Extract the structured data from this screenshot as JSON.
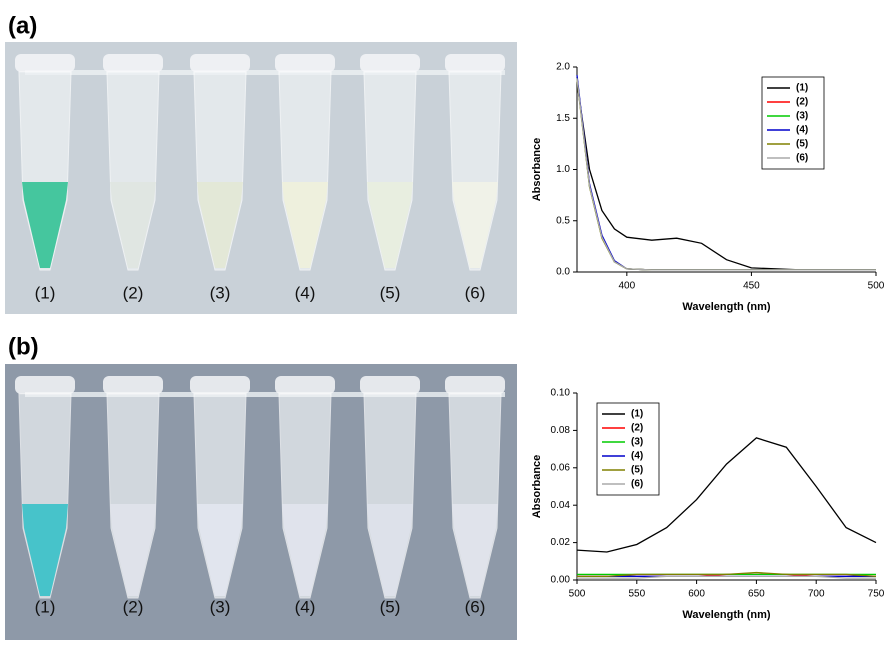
{
  "panels": [
    {
      "label": "(a)",
      "tubes": [
        "(1)",
        "(2)",
        "(3)",
        "(4)",
        "(5)",
        "(6)"
      ]
    },
    {
      "label": "(b)",
      "tubes": [
        "(1)",
        "(2)",
        "(3)",
        "(4)",
        "(5)",
        "(6)"
      ]
    }
  ],
  "chart_data": [
    {
      "type": "line",
      "x_label": "Wavelength (nm)",
      "y_label": "Absorbance",
      "x": [
        380,
        385,
        390,
        395,
        400,
        410,
        420,
        430,
        440,
        450,
        470,
        500
      ],
      "xlim": [
        380,
        500
      ],
      "xticks": [
        400,
        450,
        500
      ],
      "ylim": [
        0,
        2
      ],
      "yticks": [
        {
          "value": 0,
          "label": "0.0"
        },
        0.5,
        {
          "value": 1,
          "label": "1.0"
        },
        1.5,
        {
          "value": 2,
          "label": "2.0"
        }
      ],
      "legend": "upper right",
      "series": [
        {
          "name": "(1)",
          "color": "#000000",
          "values": [
            1.85,
            1.0,
            0.6,
            0.42,
            0.34,
            0.31,
            0.33,
            0.28,
            0.12,
            0.04,
            0.02,
            0.02
          ]
        },
        {
          "name": "(2)",
          "color": "#ff0000",
          "values": [
            1.9,
            0.85,
            0.35,
            0.1,
            0.03,
            0.02,
            0.02,
            0.02,
            0.02,
            0.02,
            0.02,
            0.02
          ]
        },
        {
          "name": "(3)",
          "color": "#00cc00",
          "values": [
            1.9,
            0.84,
            0.34,
            0.1,
            0.03,
            0.02,
            0.02,
            0.02,
            0.02,
            0.02,
            0.02,
            0.02
          ]
        },
        {
          "name": "(4)",
          "color": "#0000cc",
          "values": [
            1.92,
            0.86,
            0.36,
            0.11,
            0.03,
            0.02,
            0.02,
            0.02,
            0.02,
            0.02,
            0.02,
            0.02
          ]
        },
        {
          "name": "(5)",
          "color": "#808000",
          "values": [
            1.88,
            0.83,
            0.33,
            0.1,
            0.03,
            0.02,
            0.02,
            0.02,
            0.02,
            0.02,
            0.02,
            0.02
          ]
        },
        {
          "name": "(6)",
          "color": "#aaaaaa",
          "values": [
            1.89,
            0.84,
            0.34,
            0.1,
            0.03,
            0.02,
            0.02,
            0.02,
            0.02,
            0.02,
            0.02,
            0.02
          ]
        }
      ]
    },
    {
      "type": "line",
      "x_label": "Wavelength (nm)",
      "y_label": "Absorbance",
      "x": [
        500,
        525,
        550,
        575,
        600,
        625,
        650,
        675,
        700,
        725,
        750
      ],
      "xlim": [
        500,
        750
      ],
      "xticks": [
        500,
        550,
        600,
        650,
        700,
        750
      ],
      "ylim": [
        0,
        0.1
      ],
      "yticks": [
        {
          "value": 0,
          "label": "0.00"
        },
        {
          "value": 0.02,
          "label": "0.02"
        },
        {
          "value": 0.04,
          "label": "0.04"
        },
        {
          "value": 0.06,
          "label": "0.06"
        },
        {
          "value": 0.08,
          "label": "0.08"
        },
        {
          "value": 0.1,
          "label": "0.10"
        }
      ],
      "legend": "upper left",
      "series": [
        {
          "name": "(1)",
          "color": "#000000",
          "values": [
            0.016,
            0.015,
            0.019,
            0.028,
            0.043,
            0.062,
            0.076,
            0.071,
            0.05,
            0.028,
            0.02
          ]
        },
        {
          "name": "(2)",
          "color": "#ff0000",
          "values": [
            0.002,
            0.002,
            0.002,
            0.002,
            0.002,
            0.003,
            0.003,
            0.003,
            0.002,
            0.002,
            0.002
          ]
        },
        {
          "name": "(3)",
          "color": "#00cc00",
          "values": [
            0.003,
            0.003,
            0.003,
            0.003,
            0.003,
            0.003,
            0.003,
            0.003,
            0.003,
            0.003,
            0.003
          ]
        },
        {
          "name": "(4)",
          "color": "#0000cc",
          "values": [
            0.002,
            0.002,
            0.002,
            0.002,
            0.002,
            0.002,
            0.002,
            0.002,
            0.002,
            0.002,
            0.002
          ]
        },
        {
          "name": "(5)",
          "color": "#808000",
          "values": [
            0.002,
            0.002,
            0.003,
            0.003,
            0.003,
            0.003,
            0.004,
            0.003,
            0.003,
            0.003,
            0.002
          ]
        },
        {
          "name": "(6)",
          "color": "#aaaaaa",
          "values": [
            0.001,
            0.001,
            0.001,
            0.002,
            0.002,
            0.002,
            0.002,
            0.002,
            0.002,
            0.001,
            0.001
          ]
        }
      ]
    }
  ]
}
